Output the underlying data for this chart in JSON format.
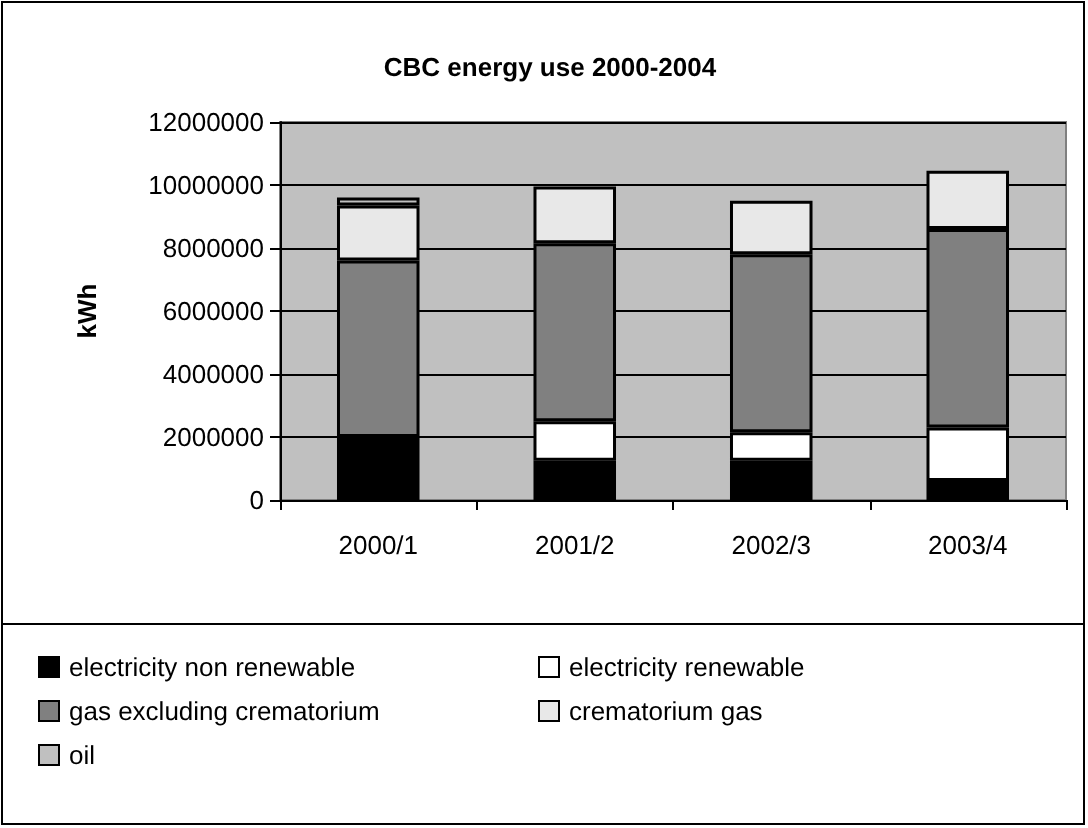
{
  "chart_data": {
    "type": "bar",
    "title": "CBC energy use 2000-2004",
    "ylabel": "kWh",
    "categories": [
      "2000/1",
      "2001/2",
      "2002/3",
      "2003/4"
    ],
    "stacked": true,
    "ylim": [
      0,
      12000000
    ],
    "yticks": [
      0,
      2000000,
      4000000,
      6000000,
      8000000,
      10000000,
      12000000
    ],
    "grid": "y",
    "legend": "bottom",
    "series": [
      {
        "name": "electricity non renewable",
        "color": "#000000",
        "values": [
          2000000,
          1250000,
          1250000,
          600000
        ]
      },
      {
        "name": "electricity renewable",
        "color": "#ffffff",
        "values": [
          0,
          1250000,
          900000,
          1700000
        ]
      },
      {
        "name": "gas excluding crematorium",
        "color": "#808080",
        "values": [
          5600000,
          5650000,
          5650000,
          6300000
        ]
      },
      {
        "name": "crematorium gas",
        "color": "#e8e8e8",
        "values": [
          1750000,
          1800000,
          1700000,
          1850000
        ]
      },
      {
        "name": "oil",
        "color": "#c0c0c0",
        "values": [
          250000,
          0,
          0,
          0
        ]
      }
    ]
  }
}
